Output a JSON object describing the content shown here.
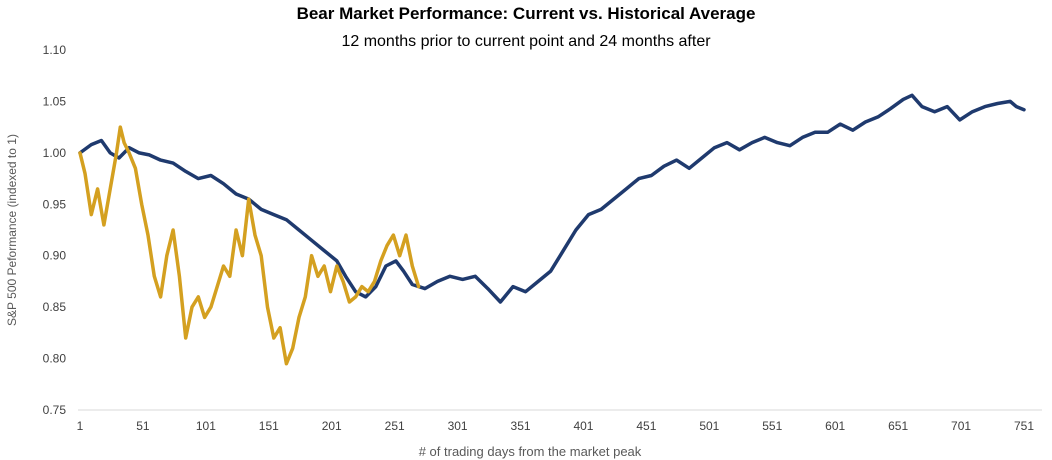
{
  "chart_data": {
    "type": "line",
    "title": "Bear Market Performance: Current vs. Historical Average",
    "subtitle": "12 months prior to current point and 24 months after",
    "xlabel": "# of trading days from the market peak",
    "ylabel": "S&P 500 Peformance (indexed to 1)",
    "xlim": [
      1,
      761
    ],
    "ylim": [
      0.75,
      1.1
    ],
    "x_ticks": [
      "1",
      "51",
      "101",
      "151",
      "201",
      "251",
      "301",
      "351",
      "401",
      "451",
      "501",
      "551",
      "601",
      "651",
      "701",
      "751"
    ],
    "y_ticks": [
      "0.75",
      "0.80",
      "0.85",
      "0.90",
      "0.95",
      "1.00",
      "1.05",
      "1.10"
    ],
    "grid": false,
    "legend": "none",
    "series": [
      {
        "name": "Historical Average",
        "color": "#1f3a6e",
        "x": [
          1,
          10,
          18,
          25,
          32,
          40,
          48,
          56,
          65,
          75,
          85,
          95,
          105,
          115,
          125,
          135,
          145,
          155,
          165,
          175,
          185,
          195,
          205,
          212,
          220,
          228,
          236,
          244,
          252,
          258,
          265,
          275,
          285,
          295,
          305,
          315,
          325,
          335,
          345,
          355,
          365,
          375,
          385,
          395,
          405,
          415,
          425,
          435,
          445,
          455,
          465,
          475,
          485,
          495,
          505,
          515,
          525,
          535,
          545,
          555,
          565,
          575,
          585,
          595,
          605,
          615,
          625,
          635,
          645,
          655,
          662,
          670,
          680,
          690,
          700,
          710,
          720,
          730,
          740,
          745,
          751
        ],
        "values": [
          1.0,
          1.008,
          1.012,
          1.0,
          0.995,
          1.005,
          1.0,
          0.998,
          0.993,
          0.99,
          0.982,
          0.975,
          0.978,
          0.97,
          0.96,
          0.955,
          0.945,
          0.94,
          0.935,
          0.925,
          0.915,
          0.905,
          0.895,
          0.88,
          0.865,
          0.86,
          0.87,
          0.89,
          0.895,
          0.885,
          0.872,
          0.868,
          0.875,
          0.88,
          0.877,
          0.88,
          0.868,
          0.855,
          0.87,
          0.865,
          0.875,
          0.885,
          0.905,
          0.925,
          0.94,
          0.945,
          0.955,
          0.965,
          0.975,
          0.978,
          0.987,
          0.993,
          0.985,
          0.995,
          1.005,
          1.01,
          1.003,
          1.01,
          1.015,
          1.01,
          1.007,
          1.015,
          1.02,
          1.02,
          1.028,
          1.022,
          1.03,
          1.035,
          1.043,
          1.052,
          1.056,
          1.045,
          1.04,
          1.045,
          1.032,
          1.04,
          1.045,
          1.048,
          1.05,
          1.045,
          1.042
        ]
      },
      {
        "name": "Current",
        "color": "#d4a020",
        "x": [
          1,
          5,
          10,
          15,
          20,
          25,
          30,
          33,
          36,
          40,
          45,
          50,
          55,
          60,
          65,
          70,
          75,
          80,
          85,
          90,
          95,
          100,
          105,
          110,
          115,
          120,
          125,
          130,
          135,
          140,
          145,
          150,
          155,
          160,
          165,
          170,
          175,
          180,
          185,
          190,
          195,
          200,
          205,
          210,
          215,
          220,
          225,
          230,
          235,
          240,
          245,
          250,
          255,
          260,
          265,
          270
        ],
        "values": [
          1.0,
          0.98,
          0.94,
          0.965,
          0.93,
          0.965,
          1.0,
          1.025,
          1.01,
          1.0,
          0.985,
          0.95,
          0.92,
          0.88,
          0.86,
          0.9,
          0.925,
          0.88,
          0.82,
          0.85,
          0.86,
          0.84,
          0.85,
          0.87,
          0.89,
          0.88,
          0.925,
          0.9,
          0.955,
          0.92,
          0.9,
          0.85,
          0.82,
          0.83,
          0.795,
          0.81,
          0.84,
          0.86,
          0.9,
          0.88,
          0.89,
          0.865,
          0.89,
          0.875,
          0.855,
          0.86,
          0.87,
          0.865,
          0.875,
          0.895,
          0.91,
          0.92,
          0.9,
          0.92,
          0.89,
          0.87
        ]
      }
    ]
  }
}
